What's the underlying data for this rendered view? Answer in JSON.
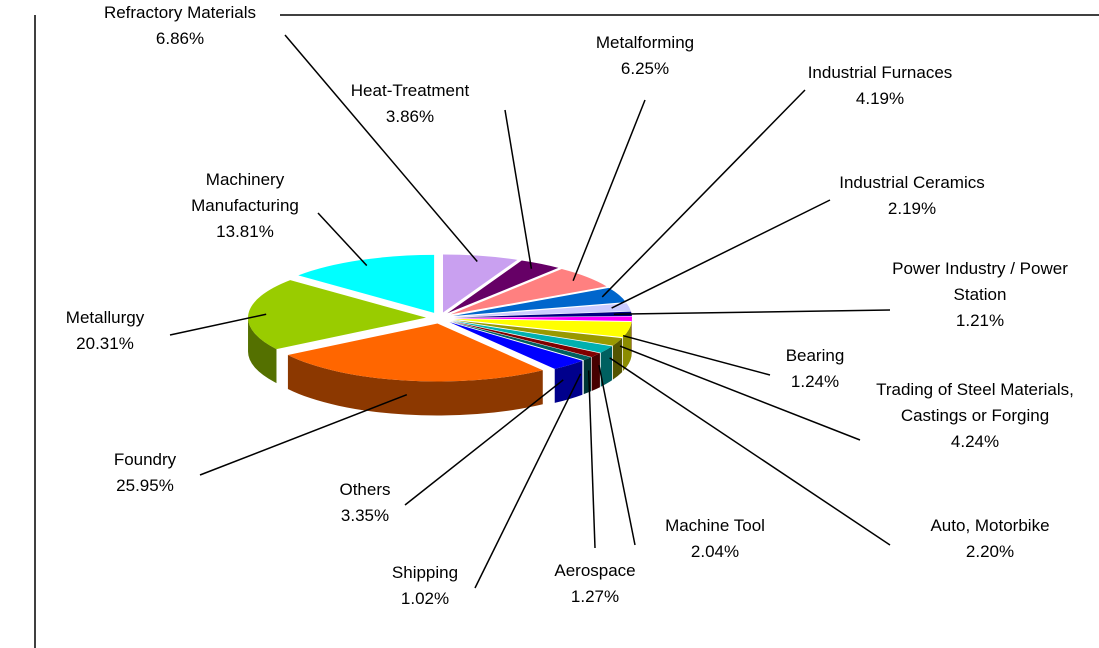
{
  "chart_data": {
    "type": "pie3d",
    "categories": [
      "Refractory Materials",
      "Heat-Treatment",
      "Metalforming",
      "Industrial Furnaces",
      "Industrial Ceramics",
      "Power Industry / Power Station",
      "Bearing",
      "Trading of Steel Materials, Castings or Forging",
      "Auto, Motorbike",
      "Machine Tool",
      "Aerospace",
      "Shipping",
      "Others",
      "Foundry",
      "Metallurgy",
      "Machinery Manufacturing"
    ],
    "values": [
      6.86,
      3.86,
      6.25,
      4.19,
      2.19,
      1.21,
      1.24,
      4.24,
      2.2,
      2.04,
      1.27,
      1.02,
      3.35,
      25.95,
      20.31,
      13.81
    ],
    "value_labels": [
      "6.86%",
      "3.86%",
      "6.25%",
      "4.19%",
      "2.19%",
      "1.21%",
      "1.24%",
      "4.24%",
      "2.20%",
      "2.04%",
      "1.27%",
      "1.02%",
      "3.35%",
      "25.95%",
      "20.31%",
      "13.81%"
    ],
    "colors": [
      "#c9a0f0",
      "#660066",
      "#ff8080",
      "#0066cc",
      "#ccccff",
      "#000080",
      "#ff00ff",
      "#ffff00",
      "#999900",
      "#00b0b0",
      "#800000",
      "#006060",
      "#0000ff",
      "#ff6600",
      "#99cc00",
      "#00ffff"
    ]
  }
}
